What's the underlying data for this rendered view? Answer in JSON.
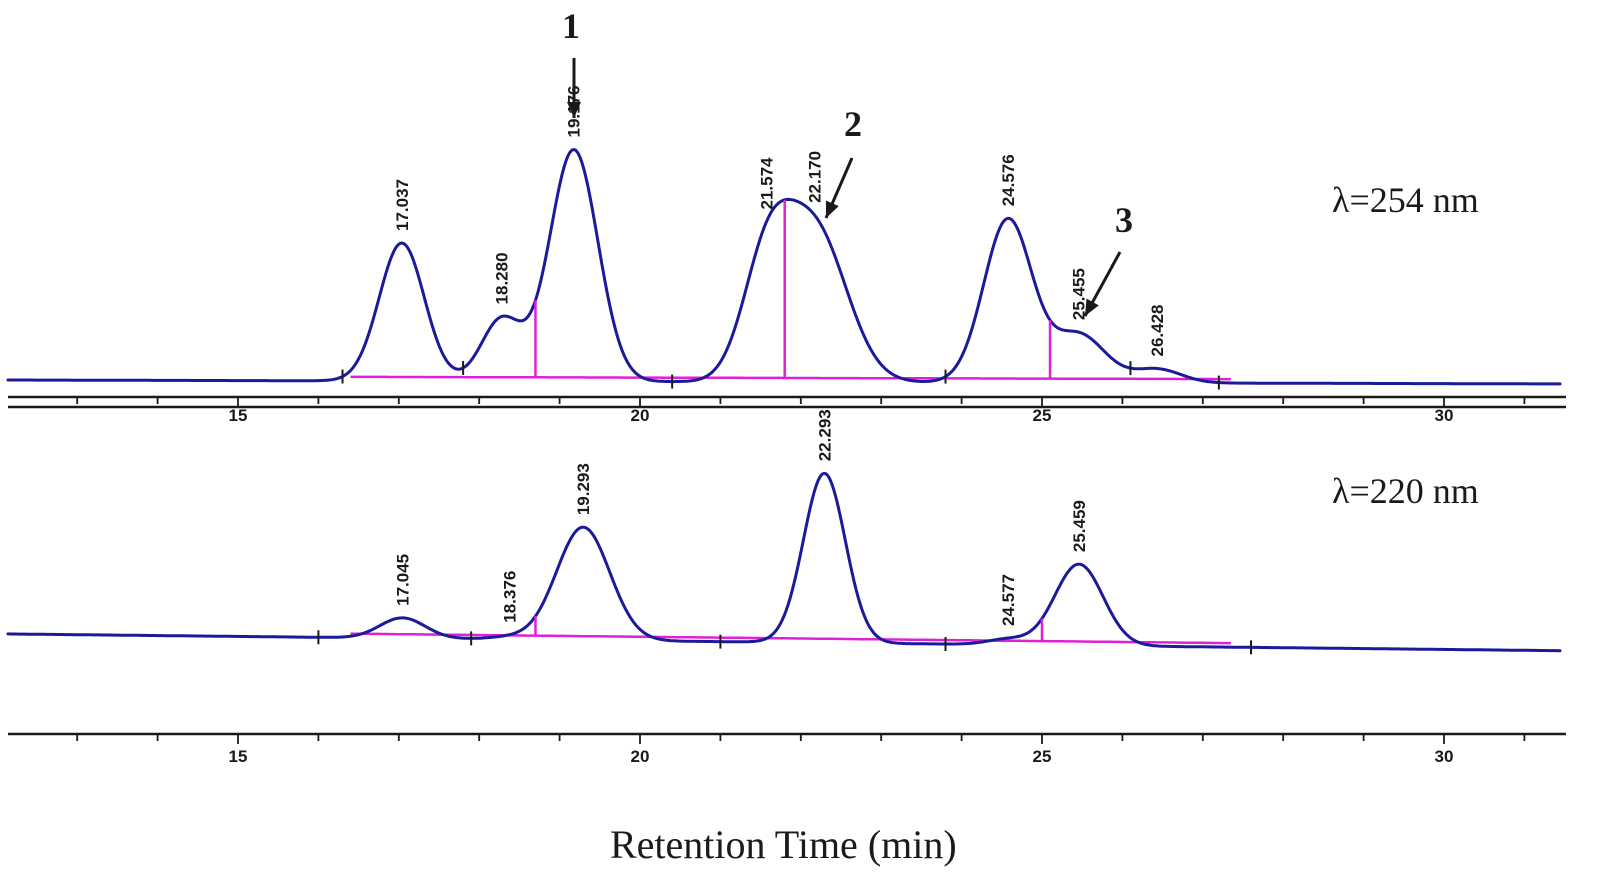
{
  "chart_data": [
    {
      "type": "line",
      "panel": "top",
      "wavelength_label": "λ=254 nm",
      "xlim": [
        12.2,
        31.8
      ],
      "x_ticks": [
        15,
        20,
        25,
        30
      ],
      "peaks": [
        {
          "rt": 17.037,
          "label": "17.037",
          "height": 1.0,
          "width": 0.28
        },
        {
          "rt": 18.28,
          "label": "18.280",
          "height": 0.45,
          "width": 0.25
        },
        {
          "rt": 19.176,
          "label": "19.176",
          "height": 1.68,
          "width": 0.3
        },
        {
          "rt": 21.574,
          "label": "21.574",
          "height": 0.8,
          "width": 0.3
        },
        {
          "rt": 22.17,
          "label": "22.170",
          "height": 1.1,
          "width": 0.4
        },
        {
          "rt": 24.576,
          "label": "24.576",
          "height": 1.18,
          "width": 0.3
        },
        {
          "rt": 25.455,
          "label": "25.455",
          "height": 0.35,
          "width": 0.33
        },
        {
          "rt": 26.428,
          "label": "26.428",
          "height": 0.1,
          "width": 0.3
        }
      ],
      "integration_marks": [
        16.3,
        17.8,
        18.7,
        20.4,
        21.8,
        23.8,
        25.1,
        26.1,
        27.2
      ],
      "annotations": [
        {
          "label": "1",
          "target_rt": 19.176
        },
        {
          "label": "2",
          "target_rt": 22.17
        },
        {
          "label": "3",
          "target_rt": 25.455
        }
      ]
    },
    {
      "type": "line",
      "panel": "bottom",
      "wavelength_label": "λ=220 nm",
      "xlim": [
        12.2,
        31.8
      ],
      "x_ticks": [
        15,
        20,
        25,
        30
      ],
      "peaks": [
        {
          "rt": 17.045,
          "label": "17.045",
          "height": 0.18,
          "width": 0.28
        },
        {
          "rt": 18.376,
          "label": "18.376",
          "height": 0.02,
          "width": 0.25
        },
        {
          "rt": 19.293,
          "label": "19.293",
          "height": 1.0,
          "width": 0.33
        },
        {
          "rt": 22.293,
          "label": "22.293",
          "height": 1.5,
          "width": 0.26
        },
        {
          "rt": 24.577,
          "label": "24.577",
          "height": 0.05,
          "width": 0.25
        },
        {
          "rt": 25.459,
          "label": "25.459",
          "height": 0.72,
          "width": 0.3
        }
      ],
      "integration_marks": [
        16.0,
        17.9,
        18.7,
        21.0,
        23.8,
        25.0,
        27.6
      ],
      "annotations": []
    }
  ],
  "xlabel": "Retention Time (min)"
}
